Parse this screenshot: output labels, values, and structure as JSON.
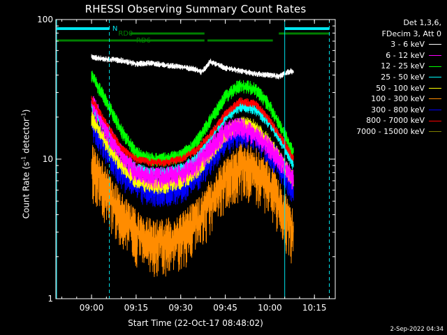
{
  "chart_data": {
    "type": "line",
    "title": "RHESSI Observing Summary Count Rates",
    "xlabel": "Start Time (22-Oct-17 08:48:02)",
    "ylabel_main": "Count Rate (s",
    "ylabel_exp": "-1",
    "ylabel_tail": " detector",
    "ylabel_tail_exp": "-1",
    "ylabel_close": ")",
    "y_scale": "log",
    "ylim": [
      1,
      100
    ],
    "xlim": [
      "08:48",
      "10:22"
    ],
    "xticks": [
      "09:00",
      "09:15",
      "09:30",
      "09:45",
      "10:00",
      "10:15"
    ],
    "yticks": [
      "1",
      "10",
      "100"
    ],
    "legend_header": [
      "Det 1,3,6,",
      "FDecim 3, Att 0"
    ],
    "series": [
      {
        "name": "3 - 6 keV",
        "color": "#ffffff",
        "x": [
          "08:60",
          "09:05",
          "09:10",
          "09:15",
          "09:20",
          "09:25",
          "09:30",
          "09:35",
          "09:37",
          "09:40",
          "09:45",
          "09:50",
          "09:55",
          "10:00",
          "10:03",
          "10:05",
          "10:07",
          "10:08"
        ],
        "y": [
          54,
          52,
          51,
          48,
          49,
          47,
          46,
          44,
          42,
          50,
          45,
          43,
          41,
          40,
          39,
          41,
          43,
          42
        ]
      },
      {
        "name": "6 - 12 keV",
        "color": "#ff00ff",
        "x": [
          "08:60",
          "09:05",
          "09:10",
          "09:15",
          "09:20",
          "09:25",
          "09:30",
          "09:35",
          "09:40",
          "09:45",
          "09:50",
          "09:55",
          "10:00",
          "10:05",
          "10:08"
        ],
        "y": [
          26,
          16,
          11,
          8,
          7.5,
          7.5,
          7.8,
          9,
          12,
          16,
          17,
          15,
          12,
          9,
          7
        ]
      },
      {
        "name": "12 - 25 keV",
        "color": "#00ff00",
        "x": [
          "08:60",
          "09:05",
          "09:10",
          "09:15",
          "09:20",
          "09:25",
          "09:30",
          "09:35",
          "09:40",
          "09:45",
          "09:50",
          "09:55",
          "10:00",
          "10:05",
          "10:08"
        ],
        "y": [
          40,
          26,
          16,
          11,
          10,
          10,
          10.5,
          13,
          19,
          28,
          34,
          32,
          24,
          15,
          11
        ]
      },
      {
        "name": "25 - 50 keV",
        "color": "#00ffff",
        "x": [
          "08:60",
          "09:05",
          "09:10",
          "09:15",
          "09:20",
          "09:25",
          "09:30",
          "09:35",
          "09:40",
          "09:45",
          "09:50",
          "09:55",
          "10:00",
          "10:05",
          "10:08"
        ],
        "y": [
          24,
          16,
          11,
          8.5,
          8,
          8,
          8.5,
          10,
          14,
          20,
          24,
          23,
          18,
          12,
          9
        ]
      },
      {
        "name": "50 - 100 keV",
        "color": "#ffff00",
        "x": [
          "08:60",
          "09:05",
          "09:10",
          "09:15",
          "09:20",
          "09:25",
          "09:30",
          "09:35",
          "09:40",
          "09:45",
          "09:50",
          "09:55",
          "10:00",
          "10:05",
          "10:08"
        ],
        "y": [
          20,
          13,
          9,
          7,
          6.5,
          6.5,
          7,
          8,
          11,
          15,
          18,
          17,
          13,
          9,
          7
        ]
      },
      {
        "name": "100 - 300 keV",
        "color": "#ff8c00",
        "x": [
          "08:60",
          "09:05",
          "09:10",
          "09:15",
          "09:20",
          "09:25",
          "09:30",
          "09:35",
          "09:40",
          "09:45",
          "09:50",
          "09:55",
          "10:00",
          "10:05",
          "10:08"
        ],
        "y": [
          9,
          6,
          4,
          3,
          2.6,
          2.6,
          2.8,
          3.5,
          5,
          7,
          9,
          8.5,
          6.5,
          4,
          3
        ]
      },
      {
        "name": "300 - 800 keV",
        "color": "#0000ff",
        "x": [
          "08:60",
          "09:05",
          "09:10",
          "09:15",
          "09:20",
          "09:25",
          "09:30",
          "09:35",
          "09:40",
          "09:45",
          "09:50",
          "09:55",
          "10:00",
          "10:05",
          "10:08"
        ],
        "y": [
          18,
          12,
          8,
          6.5,
          6,
          6,
          6.3,
          7.5,
          10,
          14,
          16,
          15,
          11.5,
          8,
          6
        ]
      },
      {
        "name": "800 - 7000 keV",
        "color": "#ff0000",
        "x": [
          "08:60",
          "09:05",
          "09:10",
          "09:15",
          "09:20",
          "09:25",
          "09:30",
          "09:35",
          "09:40",
          "09:45",
          "09:50",
          "09:55",
          "10:00",
          "10:05",
          "10:08"
        ],
        "y": [
          27,
          18,
          12,
          10,
          9.5,
          9.5,
          10,
          11.5,
          15,
          21,
          26,
          25,
          19,
          13,
          10
        ]
      },
      {
        "name": "7000 - 15000 keV",
        "color": "#808000",
        "x": [],
        "y": []
      }
    ],
    "markers": {
      "n_label": "N",
      "rd0_label": "RD0",
      "rd6_label": "RD6"
    }
  },
  "footer_text": "2-Sep-2022 04:34"
}
